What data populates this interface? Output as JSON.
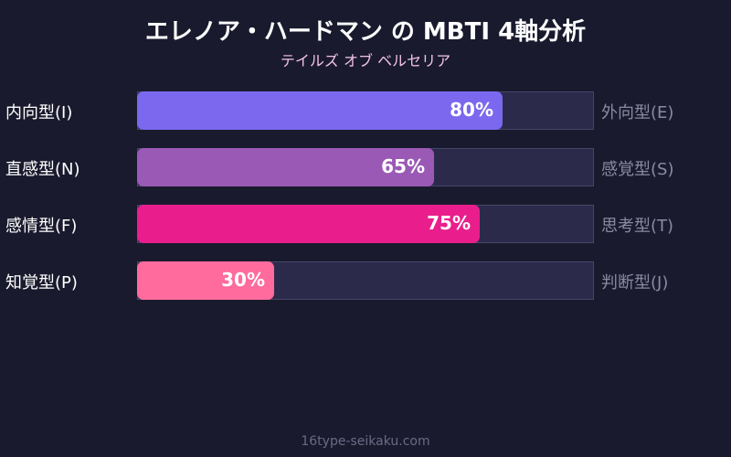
{
  "title": "エレノア・ハードマン の MBTI 4軸分析",
  "subtitle": "テイルズ オブ ベルセリア",
  "footer": "16type-seikaku.com",
  "chart_data": {
    "type": "bar",
    "orientation": "horizontal",
    "xlim": [
      0,
      100
    ],
    "categories": [
      "内向型(I)",
      "直感型(N)",
      "感情型(F)",
      "知覚型(P)"
    ],
    "opposites": [
      "外向型(E)",
      "感覚型(S)",
      "思考型(T)",
      "判断型(J)"
    ],
    "values": [
      80,
      65,
      75,
      30
    ],
    "labels": [
      "80%",
      "65%",
      "75%",
      "30%"
    ],
    "colors": [
      "#7b68ee",
      "#9b59b6",
      "#e91e8c",
      "#ff6b9d"
    ]
  }
}
